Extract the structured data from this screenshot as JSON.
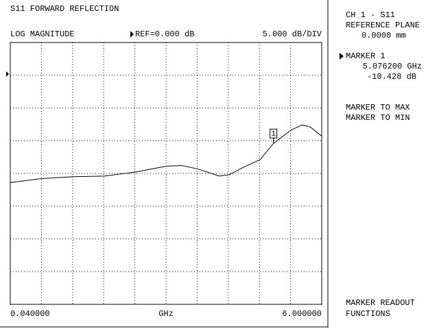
{
  "header": {
    "title": "S11 FORWARD REFLECTION",
    "format": "LOG MAGNITUDE",
    "reference": "REF=0.000 dB",
    "scale": "5.000 dB/DIV"
  },
  "chart_data": {
    "type": "line",
    "x": [
      0.04,
      0.63,
      1.25,
      1.84,
      2.43,
      3.02,
      3.32,
      3.62,
      4.04,
      4.23,
      4.52,
      4.82,
      5.0762,
      5.41,
      5.62,
      5.78,
      6.0
    ],
    "values": [
      -16.4,
      -15.8,
      -15.5,
      -15.4,
      -14.8,
      -13.9,
      -13.8,
      -14.3,
      -15.4,
      -15.2,
      -14.0,
      -12.9,
      -10.428,
      -8.4,
      -7.6,
      -7.9,
      -9.3
    ],
    "xlim": [
      0.04,
      6
    ],
    "ylim": [
      -35,
      5
    ],
    "xticks": [
      {
        "value": 0.04,
        "label": "0.040000"
      },
      {
        "value": 6,
        "label": "6.000000"
      }
    ],
    "x_label": "GHz",
    "color": "#000000",
    "grid": true,
    "marker": {
      "label": "1",
      "x": 5.0762,
      "value": -10.428
    }
  },
  "side_panel": {
    "channel": "CH 1 - S11",
    "reference_plane": "REFERENCE PLANE",
    "reference_plane_value": "0.0000 mm",
    "marker_title": "MARKER 1",
    "marker_frequency": "5.076200 GHz",
    "marker_value": "-10.428 dB",
    "menu": [
      "MARKER TO MAX",
      "MARKER TO MIN"
    ],
    "footer": [
      "MARKER READOUT",
      "FUNCTIONS"
    ]
  }
}
